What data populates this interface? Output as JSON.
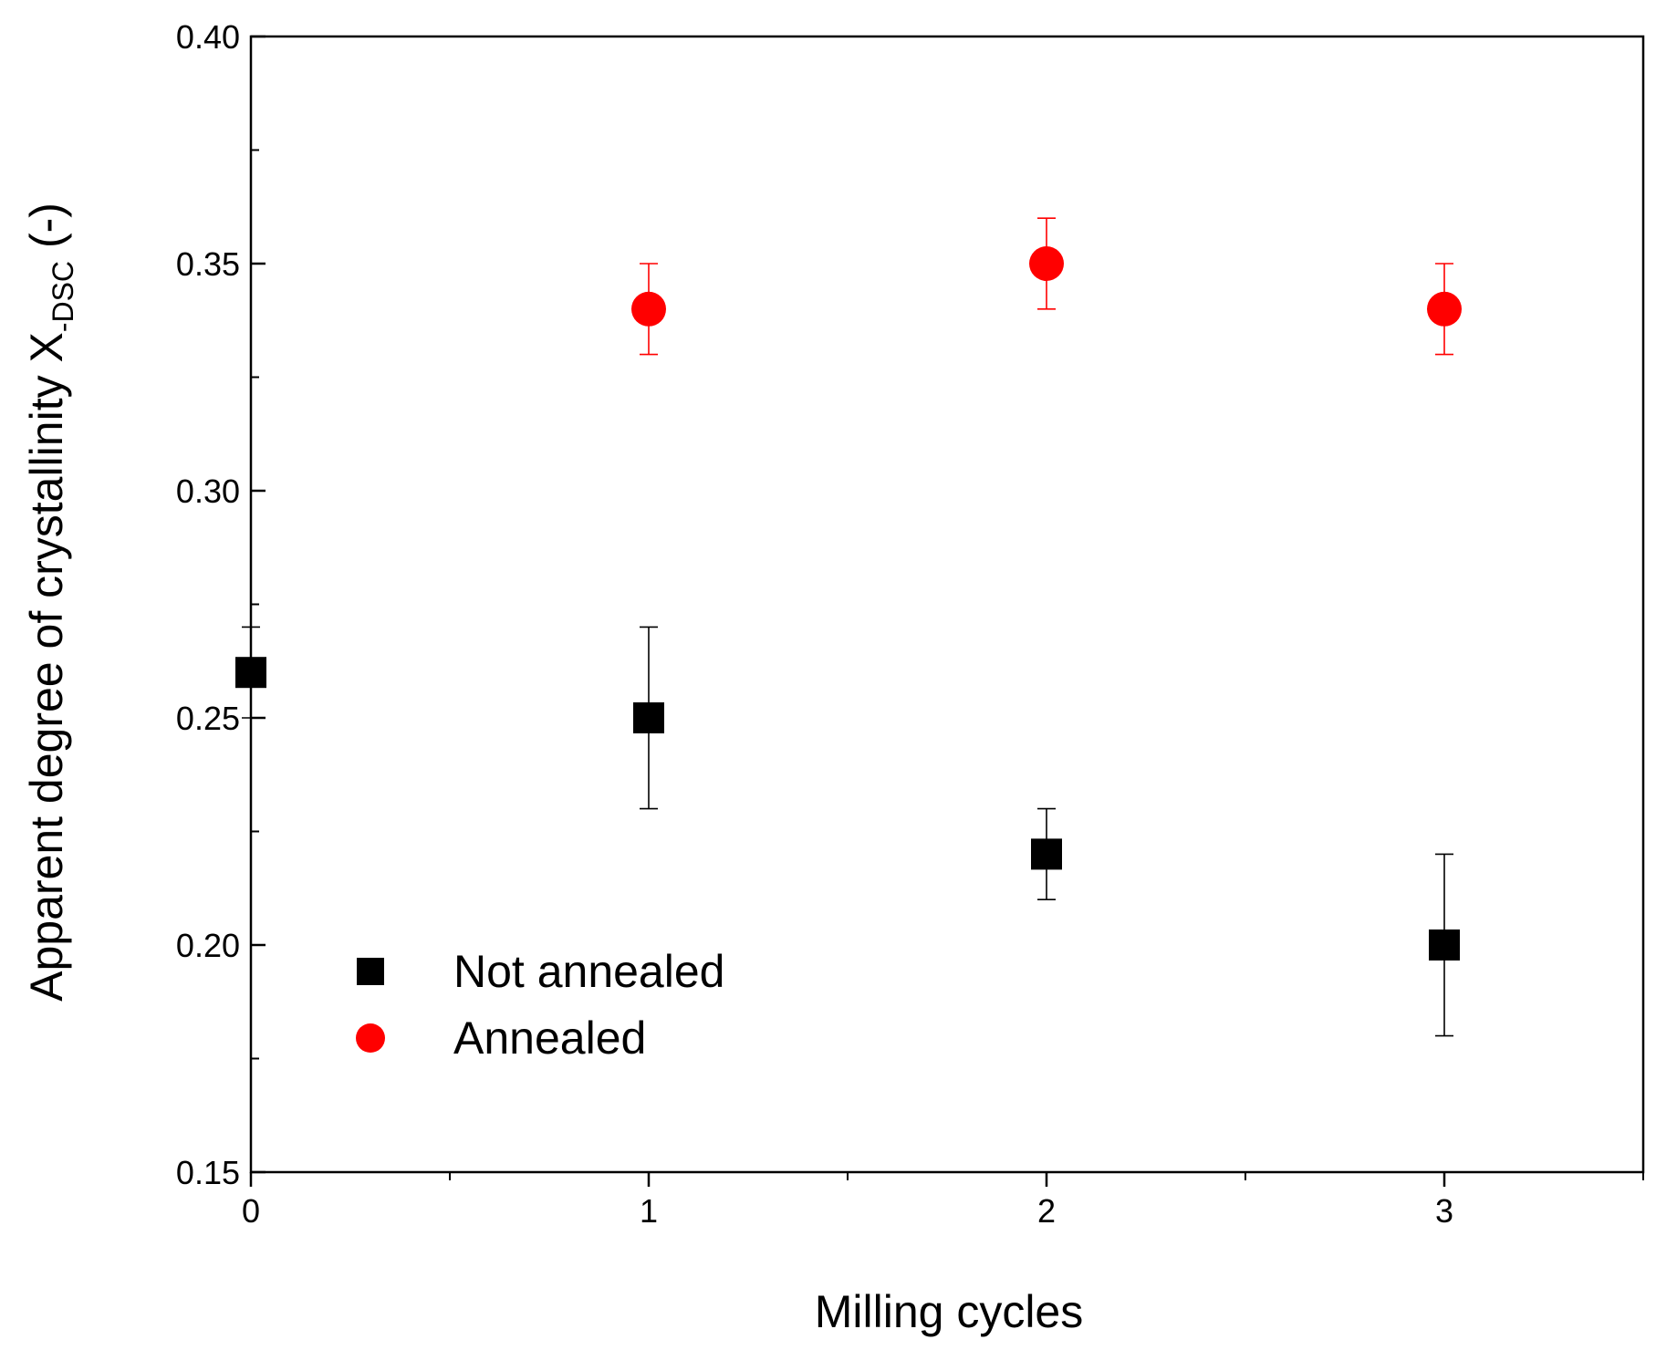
{
  "chart_data": {
    "type": "scatter",
    "title": "",
    "xlabel": "Milling cycles",
    "ylabel_main": "Apparent degree of crystallinity X",
    "ylabel_sub": "-DSC",
    "ylabel_suffix": " (-)",
    "xlim": [
      0,
      3.5
    ],
    "ylim": [
      0.15,
      0.4
    ],
    "x_ticks": [
      0,
      1,
      2,
      3
    ],
    "x_tick_labels": [
      "0",
      "1",
      "2",
      "3"
    ],
    "x_minor_ticks": [
      0.5,
      1.5,
      2.5,
      3.5
    ],
    "y_ticks": [
      0.15,
      0.2,
      0.25,
      0.3,
      0.35,
      0.4
    ],
    "y_tick_labels": [
      "0.15",
      "0.20",
      "0.25",
      "0.30",
      "0.35",
      "0.40"
    ],
    "y_minor_ticks": [
      0.175,
      0.225,
      0.275,
      0.325,
      0.375
    ],
    "grid": false,
    "legend_position": "lower-left",
    "series": [
      {
        "name": "Not annealed",
        "marker": "square",
        "color": "#000000",
        "x": [
          0,
          1,
          2,
          3
        ],
        "y": [
          0.26,
          0.25,
          0.22,
          0.2
        ],
        "err": [
          0.01,
          0.02,
          0.01,
          0.02
        ]
      },
      {
        "name": "Annealed",
        "marker": "circle",
        "color": "#ff0000",
        "x": [
          1,
          2,
          3
        ],
        "y": [
          0.34,
          0.35,
          0.34
        ],
        "err": [
          0.01,
          0.01,
          0.01
        ]
      }
    ]
  }
}
